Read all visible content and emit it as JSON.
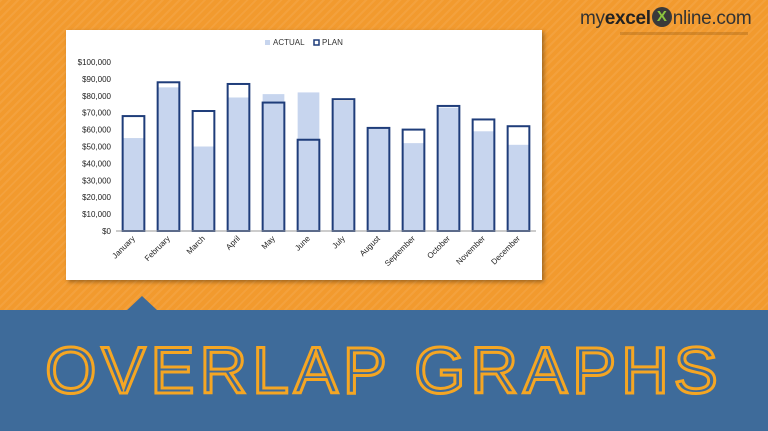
{
  "logo": {
    "prefix": "my",
    "bold": "excel",
    "mark": "X",
    "suffix": "nline.com"
  },
  "banner": {
    "title": "OVERLAP GRAPHS"
  },
  "colors": {
    "background": "#f29a2e",
    "banner": "#3e6b9a",
    "title_outline": "#f5a623",
    "actual_fill": "#c7d5ee",
    "plan_stroke": "#1f3d7a"
  },
  "chart_data": {
    "type": "bar",
    "categories": [
      "January",
      "February",
      "March",
      "April",
      "May",
      "June",
      "July",
      "August",
      "September",
      "October",
      "November",
      "December"
    ],
    "series": [
      {
        "name": "ACTUAL",
        "values": [
          55000,
          85000,
          50000,
          79000,
          81000,
          82000,
          77000,
          61000,
          52000,
          73000,
          59000,
          51000
        ]
      },
      {
        "name": "PLAN",
        "values": [
          68000,
          88000,
          71000,
          87000,
          76000,
          54000,
          78000,
          61000,
          60000,
          74000,
          66000,
          62000
        ]
      }
    ],
    "ylim": [
      0,
      100000
    ],
    "yticks": [
      "$0",
      "$10,000",
      "$20,000",
      "$30,000",
      "$40,000",
      "$50,000",
      "$60,000",
      "$70,000",
      "$80,000",
      "$90,000",
      "$100,000"
    ],
    "legend_position": "top",
    "overlap": true,
    "grid": false
  }
}
